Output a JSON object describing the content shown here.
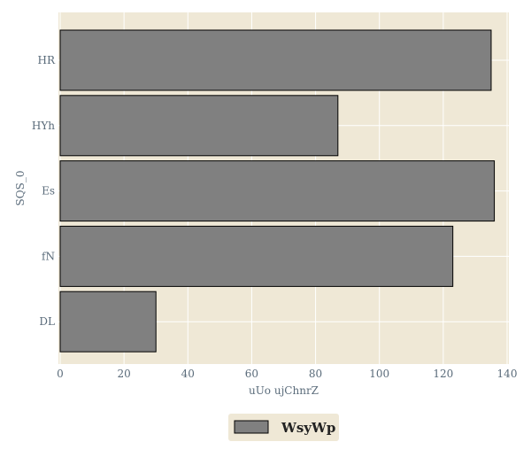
{
  "chart_data": {
    "type": "bar",
    "orientation": "horizontal",
    "categories": [
      "HR",
      "HYh",
      "Es",
      "fN",
      "DL"
    ],
    "series": [
      {
        "name": "WsyWp",
        "values": [
          135,
          87,
          136,
          123,
          30
        ]
      }
    ],
    "xlabel": "uUo ujChnrZ",
    "ylabel": "SQS_0",
    "xlim": [
      0,
      140
    ],
    "xticks": [
      0,
      20,
      40,
      60,
      80,
      100,
      120,
      140
    ],
    "grid": true,
    "legend": "bottom-center",
    "colors": {
      "plot_background": "#efe8d6",
      "bar_fill": "#808080",
      "bar_edge": "#000000",
      "grid": "#ffffff",
      "text": "#5a6b7a"
    }
  }
}
